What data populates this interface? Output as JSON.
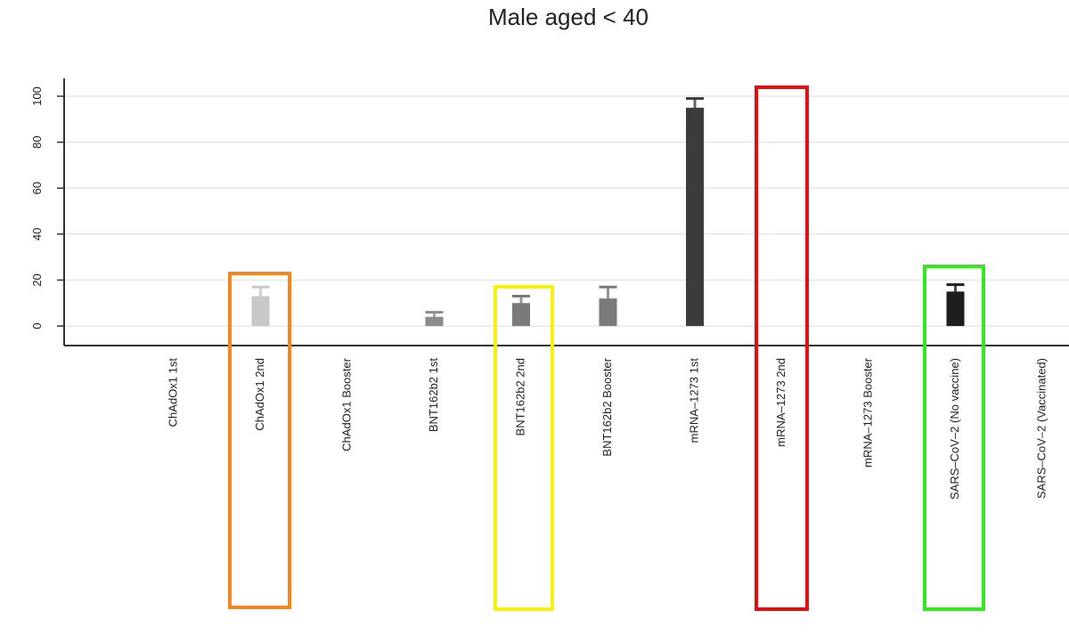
{
  "chart_data": {
    "type": "bar",
    "title": "Male aged < 40",
    "categories": [
      "ChAdOx1 1st",
      "ChAdOx1 2nd",
      "ChAdOx1 Booster",
      "BNT162b2 1st",
      "BNT162b2 2nd",
      "BNT162b2 Booster",
      "mRNA–1273 1st",
      "mRNA–1273 2nd",
      "mRNA–1273 Booster",
      "SARS–CoV–2 (No vaccine)",
      "SARS–CoV–2 (Vaccinated)"
    ],
    "values": [
      null,
      13,
      null,
      4,
      10,
      12,
      95,
      null,
      null,
      15,
      null
    ],
    "ci_lower": [
      null,
      8,
      null,
      1,
      7,
      6,
      90,
      null,
      null,
      11,
      null
    ],
    "ci_upper": [
      null,
      17,
      null,
      6,
      13,
      17,
      99,
      null,
      null,
      18,
      null
    ],
    "colors": [
      "#c8c8c8",
      "#c8c8c8",
      "#c8c8c8",
      "#8c8c8c",
      "#7a7a7a",
      "#7a7a7a",
      "#3c3c3c",
      "#4a4a4a",
      "#4a4a4a",
      "#1e1e1e",
      "#1e1e1e"
    ],
    "ylim": [
      -8.5,
      107
    ],
    "yticks": [
      0,
      20,
      40,
      60,
      80,
      100
    ],
    "grid": true
  }
}
